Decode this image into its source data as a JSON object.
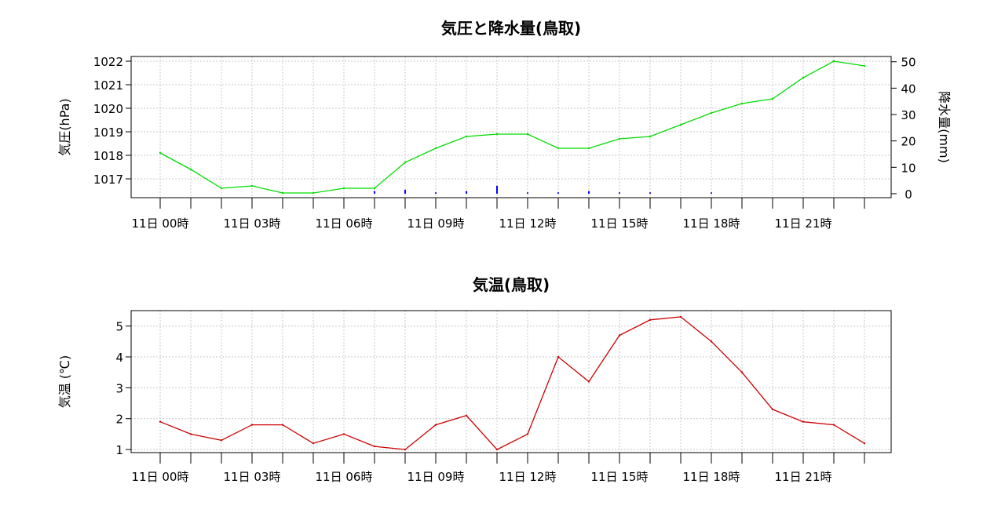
{
  "chart_data": [
    {
      "type": "line",
      "title": "気圧と降水量(鳥取)",
      "ylabel": "気圧(hPa)",
      "y2label": "降水量(mm)",
      "x_labels": [
        "11日 00時",
        "11日 03時",
        "11日 06時",
        "11日 09時",
        "11日 12時",
        "11日 15時",
        "11日 18時",
        "11日 21時"
      ],
      "y_ticks": [
        1017,
        1018,
        1019,
        1020,
        1021,
        1022
      ],
      "y_tick_labels": [
        "1017",
        "1018",
        "1019",
        "1020",
        "1021",
        "1022"
      ],
      "ylim": [
        1016.2,
        1022.2
      ],
      "y2_ticks": [
        0,
        10,
        20,
        30,
        40,
        50
      ],
      "y2_tick_labels": [
        "0",
        "10",
        "20",
        "30",
        "40",
        "50"
      ],
      "y2lim": [
        -1.5,
        52
      ],
      "grid": true,
      "series": [
        {
          "axis": "left",
          "kind": "line",
          "color": "#00dd00",
          "hours": [
            0,
            1,
            2,
            3,
            4,
            5,
            6,
            7,
            8,
            9,
            10,
            11,
            12,
            13,
            14,
            15,
            16,
            17,
            18,
            19,
            20,
            21,
            22,
            23
          ],
          "values": [
            1018.1,
            1017.4,
            1016.6,
            1016.7,
            1016.4,
            1016.4,
            1016.6,
            1016.6,
            1017.7,
            1018.3,
            1018.8,
            1018.9,
            1018.9,
            1018.3,
            1018.3,
            1018.7,
            1018.8,
            1019.3,
            1019.8,
            1020.2,
            1020.4,
            1021.3,
            1022.0,
            1021.8
          ]
        },
        {
          "axis": "right",
          "kind": "bar",
          "color": "#0000ff",
          "hours": [
            0,
            1,
            2,
            3,
            4,
            5,
            6,
            7,
            8,
            9,
            10,
            11,
            12,
            13,
            14,
            15,
            16,
            17,
            18,
            19,
            20,
            21,
            22,
            23
          ],
          "values": [
            0,
            0,
            0,
            0,
            0,
            0,
            0,
            1.0,
            1.5,
            0.5,
            1.0,
            3.0,
            0.5,
            0.5,
            1.0,
            0.5,
            0.5,
            0,
            0.5,
            0,
            0,
            0,
            0,
            0
          ]
        }
      ]
    },
    {
      "type": "line",
      "title": "気温(鳥取)",
      "ylabel": "気温 (℃)",
      "x_labels": [
        "11日 00時",
        "11日 03時",
        "11日 06時",
        "11日 09時",
        "11日 12時",
        "11日 15時",
        "11日 18時",
        "11日 21時"
      ],
      "y_ticks": [
        1,
        2,
        3,
        4,
        5
      ],
      "y_tick_labels": [
        "1",
        "2",
        "3",
        "4",
        "5"
      ],
      "ylim": [
        0.9,
        5.5
      ],
      "grid": true,
      "series": [
        {
          "axis": "left",
          "kind": "line",
          "color": "#cc0000",
          "hours": [
            0,
            1,
            2,
            3,
            4,
            5,
            6,
            7,
            8,
            9,
            10,
            11,
            12,
            13,
            14,
            15,
            16,
            17,
            18,
            19,
            20,
            21,
            22,
            23
          ],
          "values": [
            1.9,
            1.5,
            1.3,
            1.8,
            1.8,
            1.2,
            1.5,
            1.1,
            1.0,
            1.8,
            2.1,
            1.0,
            1.5,
            4.0,
            3.2,
            4.7,
            5.2,
            5.3,
            4.5,
            3.5,
            2.3,
            1.9,
            1.8,
            1.2
          ]
        }
      ]
    }
  ]
}
